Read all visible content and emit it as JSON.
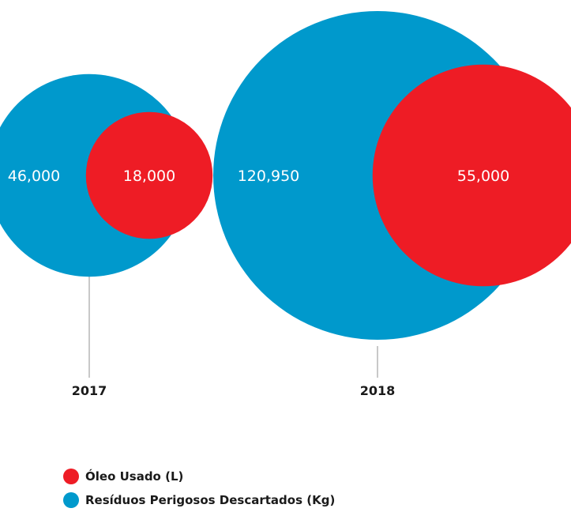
{
  "chart_data": {
    "type": "bubble",
    "categories": [
      "2017",
      "2018"
    ],
    "series": [
      {
        "name": "Resíduos Perigosos Descartados (Kg)",
        "color": "#0099cc",
        "values": [
          46000,
          120950
        ],
        "labels": [
          "46,000",
          "120,950"
        ]
      },
      {
        "name": "Óleo Usado (L)",
        "color": "#ee1c25",
        "values": [
          18000,
          55000
        ],
        "labels": [
          "18,000",
          "55,000"
        ]
      }
    ],
    "legend_position": "bottom-left"
  },
  "legend": {
    "items": [
      {
        "label": "Óleo Usado (L)",
        "color": "#ee1c25"
      },
      {
        "label": "Resíduos Perigosos Descartados (Kg)",
        "color": "#0099cc"
      }
    ]
  }
}
